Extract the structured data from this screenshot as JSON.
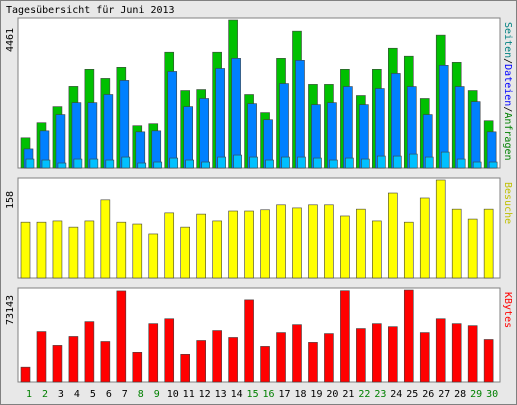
{
  "chart_data": [
    {
      "type": "bar",
      "title": "Tagesübersicht für Juni 2013",
      "categories": [
        "1",
        "2",
        "3",
        "4",
        "5",
        "6",
        "7",
        "8",
        "9",
        "10",
        "11",
        "12",
        "13",
        "14",
        "15",
        "16",
        "17",
        "18",
        "19",
        "20",
        "21",
        "22",
        "23",
        "24",
        "25",
        "26",
        "27",
        "28",
        "29",
        "30"
      ],
      "category_colors": [
        "#008000",
        "#008000",
        "#000000",
        "#000000",
        "#000000",
        "#000000",
        "#000000",
        "#008000",
        "#008000",
        "#000000",
        "#000000",
        "#000000",
        "#000000",
        "#000000",
        "#008000",
        "#008000",
        "#000000",
        "#000000",
        "#000000",
        "#000000",
        "#000000",
        "#008000",
        "#008000",
        "#000000",
        "#000000",
        "#000000",
        "#000000",
        "#000000",
        "#008000",
        "#008000"
      ],
      "legend_separator": "/",
      "ylim": [
        0,
        4461
      ],
      "series": [
        {
          "name": "Anfragen",
          "color": "#00c000",
          "label_color": "#008000",
          "values": [
            910,
            1365,
            1850,
            2460,
            2975,
            2700,
            3035,
            1275,
            1335,
            3490,
            2335,
            2365,
            3490,
            4461,
            2215,
            1670,
            3305,
            4125,
            2520,
            2520,
            2975,
            2185,
            2975,
            3610,
            3370,
            2095,
            4005,
            3185,
            2335,
            1425
          ]
        },
        {
          "name": "Dateien",
          "color": "#0080ff",
          "label_color": "#0000ff",
          "values": [
            575,
            1120,
            1610,
            1970,
            1970,
            2215,
            2640,
            1090,
            1120,
            2910,
            1850,
            2095,
            3000,
            3305,
            1940,
            1455,
            2545,
            3245,
            1910,
            1970,
            2455,
            1910,
            2395,
            2850,
            2455,
            1610,
            3095,
            2455,
            2000,
            1090
          ]
        },
        {
          "name": "Seiten",
          "color": "#00c0ff",
          "label_color": "#008080",
          "values": [
            270,
            240,
            150,
            270,
            270,
            240,
            330,
            150,
            180,
            300,
            240,
            180,
            330,
            390,
            330,
            240,
            330,
            330,
            300,
            240,
            300,
            270,
            360,
            360,
            420,
            330,
            480,
            270,
            180,
            180
          ]
        }
      ]
    },
    {
      "type": "bar",
      "ylim": [
        0,
        158
      ],
      "series": [
        {
          "name": "Besuche",
          "color": "#ffff00",
          "label_color": "#c0c000",
          "values": [
            90,
            90,
            92,
            82,
            92,
            126,
            90,
            87,
            71,
            105,
            82,
            103,
            92,
            108,
            108,
            110,
            118,
            113,
            118,
            118,
            100,
            111,
            92,
            137,
            90,
            129,
            158,
            111,
            95,
            111
          ]
        }
      ]
    },
    {
      "type": "bar",
      "ylim": [
        0,
        73143
      ],
      "series": [
        {
          "name": "KBytes",
          "color": "#ff0000",
          "label_color": "#ff0000",
          "values": [
            11800,
            40100,
            29100,
            36200,
            48000,
            32200,
            72400,
            23600,
            46400,
            50300,
            22000,
            33000,
            40900,
            35400,
            65300,
            28300,
            39300,
            45600,
            31500,
            38500,
            72600,
            42500,
            46400,
            44000,
            73143,
            39300,
            50300,
            46400,
            44800,
            33800
          ]
        }
      ]
    }
  ]
}
